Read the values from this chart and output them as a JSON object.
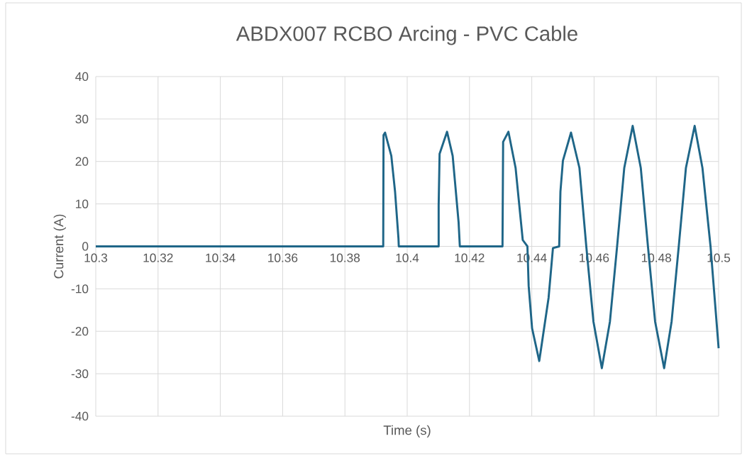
{
  "chart_data": {
    "type": "line",
    "title": "ABDX007 RCBO Arcing - PVC Cable",
    "xlabel": "Time (s)",
    "ylabel": "Current (A)",
    "x": [
      10.3,
      10.31,
      10.32,
      10.33,
      10.34,
      10.35,
      10.36,
      10.37,
      10.38,
      10.3923,
      10.3924,
      10.3929,
      10.3949,
      10.3961,
      10.3972,
      10.3973,
      10.405,
      10.4101,
      10.4101,
      10.4104,
      10.4128,
      10.4146,
      10.4165,
      10.4169,
      10.425,
      10.4306,
      10.4308,
      10.4325,
      10.4348,
      10.4371,
      10.4386,
      10.439,
      10.4401,
      10.4424,
      10.4454,
      10.4468,
      10.4488,
      10.4492,
      10.45,
      10.4526,
      10.4553,
      10.4575,
      10.4598,
      10.4625,
      10.4651,
      10.4674,
      10.4697,
      10.4724,
      10.475,
      10.4773,
      10.4796,
      10.4825,
      10.4849,
      10.4872,
      10.4895,
      10.4923,
      10.4948,
      10.4974,
      10.5
    ],
    "series": [
      {
        "color": "#1f6688",
        "values": [
          0,
          0,
          0,
          0,
          0,
          0,
          0,
          0,
          0,
          0,
          26.2,
          26.8,
          21.3,
          12.9,
          1.8,
          0,
          0,
          0,
          9.6,
          21.8,
          27.0,
          21.3,
          5.7,
          0,
          0,
          0,
          24.6,
          27.0,
          18.5,
          1.5,
          0,
          -9.3,
          -19.3,
          -27.0,
          -12.1,
          -0.4,
          0,
          12.9,
          20.2,
          26.8,
          18.5,
          0,
          -17.7,
          -28.7,
          -17.7,
          0,
          18.5,
          28.4,
          18.5,
          0,
          -17.7,
          -28.7,
          -17.7,
          0,
          18.5,
          28.4,
          18.5,
          0,
          -24
        ]
      }
    ],
    "xlim": [
      10.3,
      10.5
    ],
    "ylim": [
      -40,
      40
    ],
    "xticks": [
      10.3,
      10.32,
      10.34,
      10.36,
      10.38,
      10.4,
      10.42,
      10.44,
      10.46,
      10.48,
      10.5
    ],
    "yticks": [
      -40,
      -30,
      -20,
      -10,
      0,
      10,
      20,
      30,
      40
    ],
    "grid": true,
    "marker": "none",
    "line_style": "solid"
  }
}
